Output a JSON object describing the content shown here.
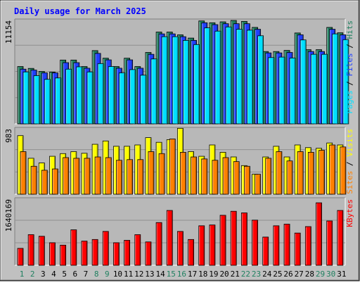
{
  "chart_data": {
    "type": "bar",
    "title": "Daily usage for March 2025",
    "categories": [
      "1",
      "2",
      "3",
      "4",
      "5",
      "6",
      "7",
      "8",
      "9",
      "10",
      "11",
      "12",
      "13",
      "14",
      "15",
      "16",
      "17",
      "18",
      "19",
      "20",
      "21",
      "22",
      "23",
      "24",
      "25",
      "26",
      "27",
      "28",
      "29",
      "30",
      "31"
    ],
    "weekend_days": [
      "1",
      "2",
      "8",
      "9",
      "15",
      "16",
      "22",
      "23",
      "29",
      "30"
    ],
    "panels": [
      {
        "id": "top",
        "max_label": "11154",
        "ymax": 11154,
        "legend": [
          {
            "text": "Pages",
            "color": "#00e0ff"
          },
          {
            "text": " / ",
            "color": "#000000"
          },
          {
            "text": "Files",
            "color": "#2040ff"
          },
          {
            "text": " / ",
            "color": "#000000"
          },
          {
            "text": "Hits",
            "color": "#208060"
          }
        ],
        "series": [
          {
            "name": "Hits",
            "color": "#208060",
            "values": [
              6180,
              5980,
              5650,
              5580,
              6880,
              6880,
              6180,
              7900,
              7080,
              6180,
              7080,
              6180,
              7700,
              9900,
              9900,
              9600,
              9250,
              11100,
              10900,
              11000,
              11150,
              11050,
              10400,
              7800,
              7800,
              7920,
              9800,
              8000,
              8000,
              10400,
              9820
            ]
          },
          {
            "name": "Files",
            "color": "#2040ff",
            "values": [
              5900,
              5800,
              5500,
              5500,
              6600,
              6600,
              6000,
              7600,
              6900,
              6000,
              6900,
              6000,
              7500,
              9700,
              9700,
              9400,
              9000,
              10900,
              10700,
              10800,
              10800,
              10800,
              10200,
              7650,
              7650,
              7700,
              9600,
              7800,
              7800,
              10200,
              9600
            ]
          },
          {
            "name": "Pages",
            "color": "#00e0ff",
            "values": [
              5600,
              5200,
              4800,
              4950,
              5900,
              6150,
              5600,
              6500,
              6180,
              5500,
              5850,
              5250,
              7000,
              9400,
              9400,
              9000,
              8550,
              10350,
              10000,
              10450,
              10200,
              10100,
              9500,
              7150,
              7200,
              7100,
              9050,
              7500,
              7500,
              9700,
              9080
            ]
          }
        ]
      },
      {
        "id": "middle",
        "max_label": "983",
        "ymax": 983,
        "legend": [
          {
            "text": "Sites",
            "color": "#ff8000"
          },
          {
            "text": " / ",
            "color": "#000000"
          },
          {
            "text": "Visits",
            "color": "#ffff00"
          }
        ],
        "series": [
          {
            "name": "Visits",
            "color": "#ffff00",
            "values": [
              880,
              540,
              470,
              570,
              610,
              640,
              615,
              750,
              800,
              720,
              720,
              740,
              850,
              780,
              820,
              990,
              640,
              570,
              740,
              630,
              560,
              430,
              300,
              560,
              720,
              560,
              740,
              700,
              690,
              770,
              740
            ]
          },
          {
            "name": "Sites",
            "color": "#ff8000",
            "values": [
              640,
              420,
              360,
              380,
              550,
              540,
              540,
              560,
              550,
              510,
              520,
              520,
              640,
              610,
              830,
              630,
              560,
              530,
              510,
              550,
              490,
              420,
              300,
              540,
              640,
              500,
              640,
              630,
              660,
              740,
              710
            ]
          }
        ]
      },
      {
        "id": "bottom",
        "max_label": "1640169",
        "ymax": 1640169,
        "legend": [
          {
            "text": "KBytes",
            "color": "#ff0000"
          }
        ],
        "series": [
          {
            "name": "KBytes",
            "color": "#ff0000",
            "values": [
              420000,
              760000,
              720000,
              560000,
              500000,
              880000,
              600000,
              640000,
              840000,
              560000,
              620000,
              760000,
              580000,
              1060000,
              1360000,
              840000,
              640000,
              980000,
              1000000,
              1240000,
              1340000,
              1300000,
              1120000,
              700000,
              980000,
              1020000,
              800000,
              960000,
              1550000,
              1100000,
              1360000
            ]
          }
        ]
      }
    ]
  }
}
